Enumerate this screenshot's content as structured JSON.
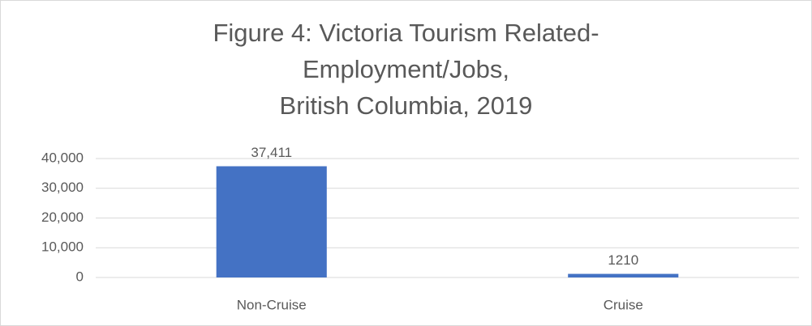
{
  "chart_data": {
    "type": "bar",
    "title": "Figure 4: Victoria Tourism Related-\nEmployment/Jobs,\nBritish Columbia, 2019",
    "categories": [
      "Non-Cruise",
      "Cruise"
    ],
    "values": [
      37411,
      1210
    ],
    "value_labels": [
      "37,411",
      "1210"
    ],
    "color": "#4472c4",
    "ylim": [
      0,
      40000
    ],
    "yticks": [
      0,
      {
        "value": 10000,
        "label": "10,000"
      },
      {
        "value": 20000,
        "label": "20,000"
      },
      {
        "value": 30000,
        "label": "30,000"
      },
      {
        "value": 40000,
        "label": "40,000"
      }
    ],
    "grid": true
  }
}
